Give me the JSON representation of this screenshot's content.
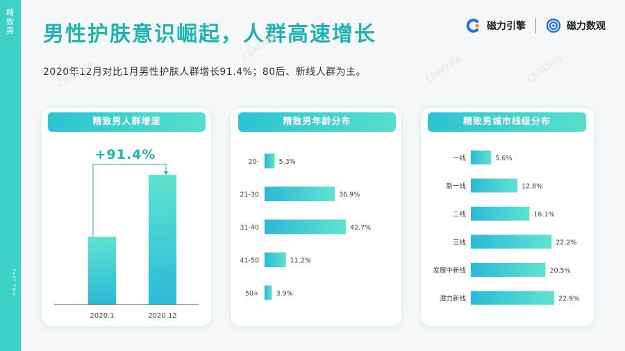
{
  "sidebar": {
    "section_label": "精致男",
    "part_label": "PART TWO"
  },
  "title": "男性护肤意识崛起，人群高速增长",
  "subtitle": "2020年12月对比1月男性护肤人群增长91.4%；80后、新线人群为主。",
  "logos": {
    "brand1": "磁力引擎",
    "brand2": "磁力数观"
  },
  "watermark": "CBNData",
  "colors": {
    "accent": "#1fb3b5",
    "bar_start": "#2ab9d8",
    "bar_end": "#5fe3cf",
    "sidebar": "#3dd1c7"
  },
  "chart_data": [
    {
      "type": "bar",
      "title": "精致男人群增速",
      "categories": [
        "2020.1",
        "2020.12"
      ],
      "values": [
        52.2,
        100
      ],
      "annotation": "+91.4%",
      "ylim": [
        0,
        100
      ]
    },
    {
      "type": "bar",
      "orientation": "horizontal",
      "title": "精致男年龄分布",
      "categories": [
        "20-",
        "21-30",
        "31-40",
        "41-50",
        "50+"
      ],
      "values": [
        5.3,
        36.9,
        42.7,
        11.2,
        3.9
      ],
      "value_labels": [
        "5.3%",
        "36.9%",
        "42.7%",
        "11.2%",
        "3.9%"
      ]
    },
    {
      "type": "bar",
      "orientation": "horizontal",
      "title": "精致男城市线级分布",
      "categories": [
        "一线",
        "新一线",
        "二线",
        "三线",
        "发展中新线",
        "潜力新线"
      ],
      "values": [
        5.6,
        12.8,
        16.1,
        22.2,
        20.5,
        22.9
      ],
      "value_labels": [
        "5.6%",
        "12.8%",
        "16.1%",
        "22.2%",
        "20.5%",
        "22.9%"
      ]
    }
  ]
}
